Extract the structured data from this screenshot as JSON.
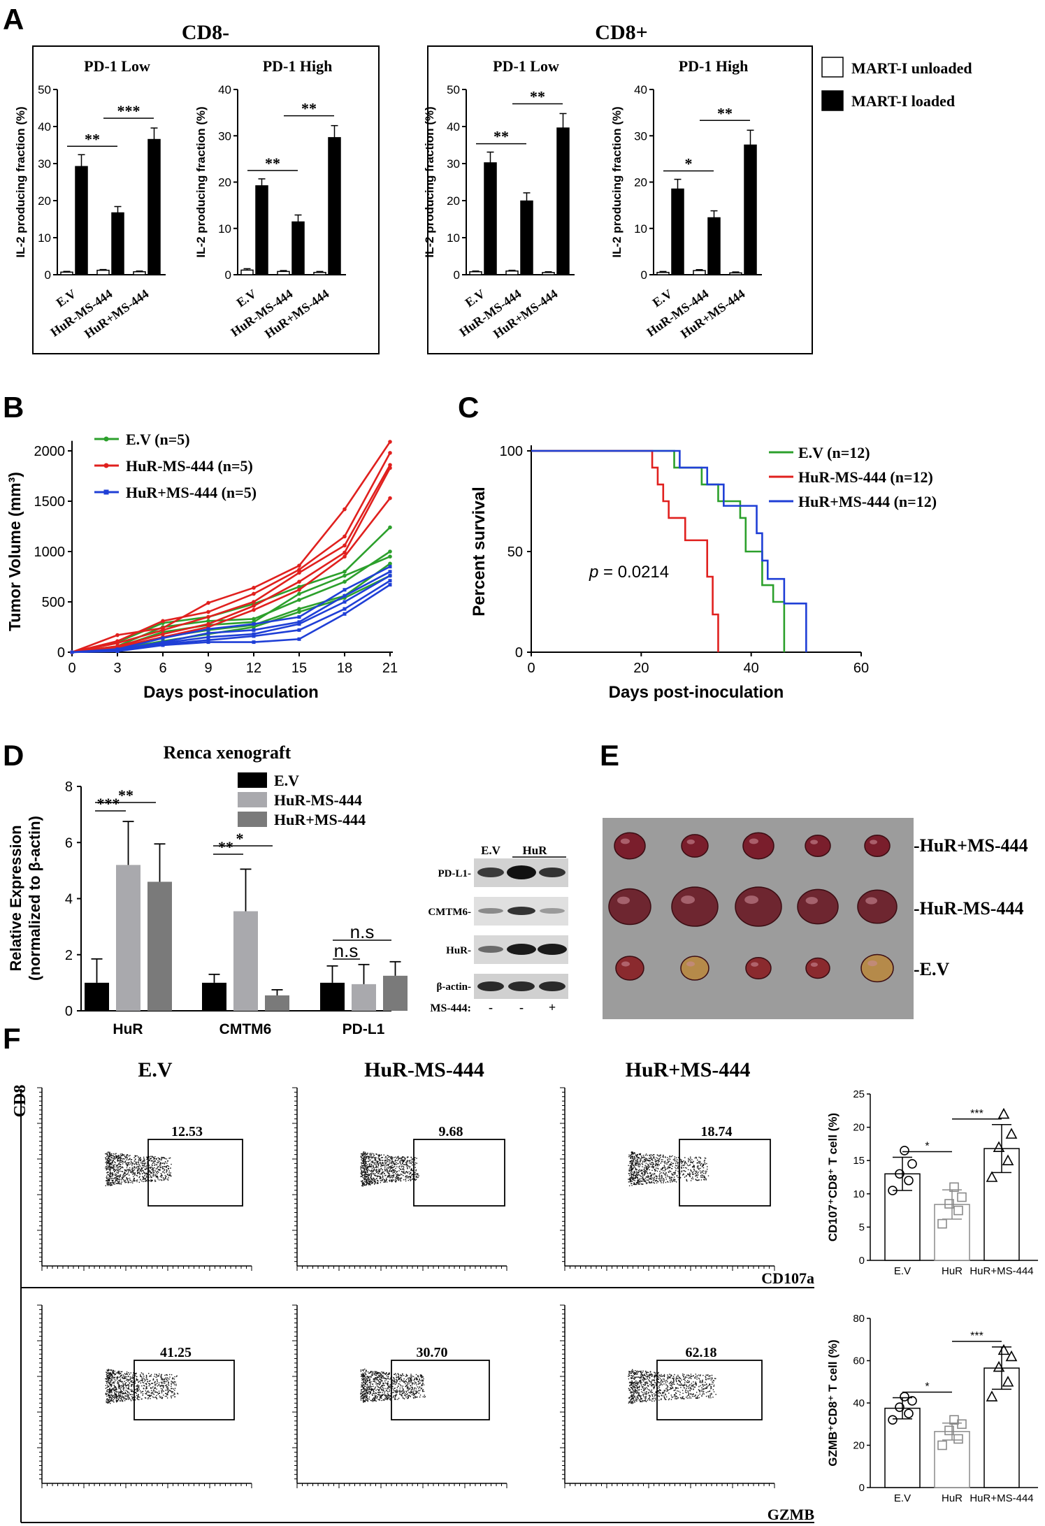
{
  "panel_letters": [
    "A",
    "B",
    "C",
    "D",
    "E",
    "F"
  ],
  "panelA": {
    "group_titles": [
      "CD8-",
      "CD8+"
    ],
    "legend": [
      {
        "label": "MART-I unloaded",
        "color": "#ffffff"
      },
      {
        "label": "MART-I loaded",
        "color": "#000000"
      }
    ]
  },
  "panelB": {
    "legend": [
      "E.V (n=5)",
      "HuR-MS-444 (n=5)",
      "HuR+MS-444 (n=5)"
    ],
    "colors": [
      "#2ca02c",
      "#e0201e",
      "#1f3fd6"
    ]
  },
  "panelC": {
    "legend": [
      "E.V (n=12)",
      "HuR-MS-444 (n=12)",
      "HuR+MS-444 (n=12)"
    ],
    "p_label": "p",
    "p_value": " = 0.0214"
  },
  "panelD": {
    "title": "Renca xenograft",
    "legend": [
      {
        "label": "E.V",
        "color": "#000000"
      },
      {
        "label": "HuR-MS-444",
        "color": "#a9a9ad"
      },
      {
        "label": "HuR+MS-444",
        "color": "#7a7a7a"
      }
    ],
    "blot": {
      "header": [
        "E.V",
        "HuR"
      ],
      "rows": [
        "PD-L1-",
        "CMTM6-",
        "HuR-",
        "β-actin-"
      ],
      "treatment_label": "MS-444:",
      "treatment_signs": [
        "-",
        "-",
        "+"
      ]
    }
  },
  "panelE": {
    "row_labels": [
      "HuR+MS-444",
      "HuR-MS-444",
      "E.V"
    ]
  },
  "panelF": {
    "column_titles": [
      "E.V",
      "HuR-MS-444",
      "HuR+MS-444"
    ],
    "y_marker": "CD8",
    "x_markers": [
      "CD107a",
      "GZMB"
    ],
    "gate_values": [
      [
        "12.53",
        "9.68",
        "18.74"
      ],
      [
        "41.25",
        "30.70",
        "62.18"
      ]
    ]
  },
  "chart_data": [
    {
      "type": "bar",
      "title": "PD-1 Low",
      "group": "CD8-",
      "ylabel": "IL-2 producing fraction (%)",
      "ylim": [
        0,
        50
      ],
      "yticks": [
        0,
        10,
        20,
        30,
        40,
        50
      ],
      "categories": [
        "E.V",
        "HuR-MS-444",
        "HuR+MS-444"
      ],
      "series": [
        {
          "name": "MART-I unloaded",
          "values": [
            0.7,
            1.2,
            0.8
          ],
          "errors": [
            0.2,
            0.2,
            0.2
          ]
        },
        {
          "name": "MART-I loaded",
          "values": [
            29.2,
            16.7,
            36.5
          ],
          "errors": [
            3.2,
            1.7,
            3.1
          ]
        }
      ],
      "significance": [
        {
          "from": 0,
          "to": 1,
          "label": "**"
        },
        {
          "from": 1,
          "to": 2,
          "label": "***"
        }
      ]
    },
    {
      "type": "bar",
      "title": "PD-1 High",
      "group": "CD8-",
      "ylabel": "IL-2 producing fraction (%)",
      "ylim": [
        0,
        40
      ],
      "yticks": [
        0,
        10,
        20,
        30,
        40
      ],
      "categories": [
        "E.V",
        "HuR-MS-444",
        "HuR+MS-444"
      ],
      "series": [
        {
          "name": "MART-I unloaded",
          "values": [
            1.0,
            0.7,
            0.5
          ],
          "errors": [
            0.3,
            0.2,
            0.2
          ]
        },
        {
          "name": "MART-I loaded",
          "values": [
            19.2,
            11.4,
            29.6
          ],
          "errors": [
            1.5,
            1.5,
            2.6
          ]
        }
      ],
      "significance": [
        {
          "from": 0,
          "to": 1,
          "label": "**"
        },
        {
          "from": 1,
          "to": 2,
          "label": "**"
        }
      ]
    },
    {
      "type": "bar",
      "title": "PD-1 Low",
      "group": "CD8+",
      "ylabel": "IL-2 producing fraction (%)",
      "ylim": [
        0,
        50
      ],
      "yticks": [
        0,
        10,
        20,
        30,
        40,
        50
      ],
      "categories": [
        "E.V",
        "HuR-MS-444",
        "HuR+MS-444"
      ],
      "series": [
        {
          "name": "MART-I unloaded",
          "values": [
            0.8,
            1.0,
            0.6
          ],
          "errors": [
            0.2,
            0.2,
            0.2
          ]
        },
        {
          "name": "MART-I loaded",
          "values": [
            30.2,
            19.9,
            39.6
          ],
          "errors": [
            2.9,
            2.2,
            3.9
          ]
        }
      ],
      "significance": [
        {
          "from": 0,
          "to": 1,
          "label": "**"
        },
        {
          "from": 1,
          "to": 2,
          "label": "**"
        }
      ]
    },
    {
      "type": "bar",
      "title": "PD-1 High",
      "group": "CD8+",
      "ylabel": "IL-2 producing fraction (%)",
      "ylim": [
        0,
        40
      ],
      "yticks": [
        0,
        10,
        20,
        30,
        40
      ],
      "categories": [
        "E.V",
        "HuR-MS-444",
        "HuR+MS-444"
      ],
      "series": [
        {
          "name": "MART-I unloaded",
          "values": [
            0.5,
            0.9,
            0.4
          ],
          "errors": [
            0.2,
            0.2,
            0.2
          ]
        },
        {
          "name": "MART-I loaded",
          "values": [
            18.5,
            12.3,
            28.0
          ],
          "errors": [
            2.1,
            1.5,
            3.2
          ]
        }
      ],
      "significance": [
        {
          "from": 0,
          "to": 1,
          "label": "*"
        },
        {
          "from": 1,
          "to": 2,
          "label": "**"
        }
      ]
    },
    {
      "type": "line",
      "xlabel": "Days post-inoculation",
      "ylabel": "Tumor Volume (mm³)",
      "xlim": [
        0,
        21
      ],
      "ylim": [
        0,
        2000
      ],
      "xticks": [
        0,
        3,
        6,
        9,
        12,
        15,
        18,
        21
      ],
      "yticks": [
        0,
        500,
        1000,
        1500,
        2000
      ],
      "x": [
        0,
        3,
        6,
        9,
        12,
        15,
        18,
        21
      ],
      "groups": [
        {
          "name": "E.V (n=5)",
          "color": "#2ca02c",
          "curves": [
            [
              0,
              100,
              290,
              350,
              480,
              650,
              800,
              1240
            ],
            [
              0,
              60,
              250,
              310,
              330,
              520,
              700,
              1000
            ],
            [
              0,
              50,
              200,
              270,
              300,
              580,
              760,
              950
            ],
            [
              0,
              40,
              150,
              220,
              270,
              430,
              560,
              880
            ],
            [
              0,
              30,
              110,
              180,
              250,
              400,
              540,
              760
            ]
          ]
        },
        {
          "name": "HuR-MS-444 (n=5)",
          "color": "#e0201e",
          "curves": [
            [
              0,
              170,
              240,
              490,
              640,
              860,
              1420,
              2090
            ],
            [
              0,
              110,
              310,
              400,
              580,
              820,
              1150,
              1980
            ],
            [
              0,
              90,
              220,
              350,
              500,
              790,
              1060,
              1860
            ],
            [
              0,
              60,
              180,
              280,
              460,
              700,
              990,
              1830
            ],
            [
              0,
              50,
              150,
              250,
              420,
              620,
              950,
              1530
            ]
          ]
        },
        {
          "name": "HuR+MS-444 (n=5)",
          "color": "#1f3fd6",
          "curves": [
            [
              0,
              30,
              140,
              230,
              280,
              350,
              620,
              850
            ],
            [
              0,
              25,
              100,
              190,
              220,
              300,
              560,
              800
            ],
            [
              0,
              20,
              90,
              150,
              180,
              280,
              500,
              760
            ],
            [
              0,
              15,
              80,
              120,
              160,
              220,
              430,
              710
            ],
            [
              0,
              10,
              70,
              100,
              100,
              130,
              380,
              670
            ]
          ]
        }
      ]
    },
    {
      "type": "line",
      "xlabel": "Days post-inoculation",
      "ylabel": "Percent survival",
      "xlim": [
        0,
        60
      ],
      "ylim": [
        0,
        100
      ],
      "xticks": [
        0,
        20,
        40,
        60
      ],
      "yticks": [
        0,
        50,
        100
      ],
      "series": [
        {
          "name": "E.V (n=12)",
          "color": "#2ca02c",
          "steps": [
            [
              0,
              100
            ],
            [
              26,
              100
            ],
            [
              26,
              91.7
            ],
            [
              31,
              91.7
            ],
            [
              31,
              83.3
            ],
            [
              34,
              83.3
            ],
            [
              34,
              75
            ],
            [
              38,
              75
            ],
            [
              38,
              66.7
            ],
            [
              39,
              66.7
            ],
            [
              39,
              50
            ],
            [
              42,
              50
            ],
            [
              42,
              33.3
            ],
            [
              44,
              33.3
            ],
            [
              44,
              25
            ],
            [
              46,
              25
            ],
            [
              46,
              0
            ]
          ]
        },
        {
          "name": "HuR-MS-444 (n=12)",
          "color": "#e0201e",
          "steps": [
            [
              0,
              100
            ],
            [
              22,
              100
            ],
            [
              22,
              91.7
            ],
            [
              23,
              91.7
            ],
            [
              23,
              83.3
            ],
            [
              24,
              83.3
            ],
            [
              24,
              75
            ],
            [
              25,
              75
            ],
            [
              25,
              66.7
            ],
            [
              28,
              66.7
            ],
            [
              28,
              55.6
            ],
            [
              32,
              55.6
            ],
            [
              32,
              37.5
            ],
            [
              33,
              37.5
            ],
            [
              33,
              18.75
            ],
            [
              34,
              18.75
            ],
            [
              34,
              0
            ]
          ]
        },
        {
          "name": "HuR+MS-444 (n=12)",
          "color": "#1f3fd6",
          "steps": [
            [
              0,
              100
            ],
            [
              27,
              100
            ],
            [
              27,
              91.7
            ],
            [
              32,
              91.7
            ],
            [
              32,
              83.3
            ],
            [
              35,
              83.3
            ],
            [
              35,
              72.7
            ],
            [
              41,
              72.7
            ],
            [
              41,
              59.1
            ],
            [
              42,
              59.1
            ],
            [
              42,
              45.5
            ],
            [
              43,
              45.5
            ],
            [
              43,
              36.4
            ],
            [
              46,
              36.4
            ],
            [
              46,
              24.2
            ],
            [
              50,
              24.2
            ],
            [
              50,
              0
            ]
          ]
        }
      ]
    },
    {
      "type": "bar",
      "title": "Renca xenograft",
      "ylabel": "Relative Expression (normalized to β-actin)",
      "ylim": [
        0,
        8
      ],
      "yticks": [
        0,
        2,
        4,
        6,
        8
      ],
      "categories": [
        "HuR",
        "CMTM6",
        "PD-L1"
      ],
      "series": [
        {
          "name": "E.V",
          "values": [
            1.0,
            1.0,
            1.0
          ],
          "errors": [
            0.85,
            0.3,
            0.6
          ]
        },
        {
          "name": "HuR-MS-444",
          "values": [
            5.2,
            3.55,
            0.95
          ],
          "errors": [
            1.55,
            1.5,
            0.7
          ]
        },
        {
          "name": "HuR+MS-444",
          "values": [
            4.6,
            0.55,
            1.25
          ],
          "errors": [
            1.35,
            0.2,
            0.5
          ]
        }
      ],
      "significance": [
        {
          "group": 0,
          "label": "***"
        },
        {
          "group": 0,
          "label": "**"
        },
        {
          "group": 1,
          "label": "**"
        },
        {
          "group": 1,
          "label": "*"
        },
        {
          "group": 2,
          "label": "n.s"
        },
        {
          "group": 2,
          "label": "n.s"
        }
      ]
    },
    {
      "type": "scatter",
      "ylabel": "CD107⁺CD8⁺ T cell (%)",
      "ylim": [
        0,
        25
      ],
      "yticks": [
        0,
        5,
        10,
        15,
        20,
        25
      ],
      "categories": [
        "E.V",
        "HuR",
        "HuR+MS-444"
      ],
      "means": [
        13.0,
        8.4,
        16.8
      ],
      "sd": [
        2.5,
        2.2,
        3.6
      ],
      "points": [
        [
          10.5,
          12.0,
          13.0,
          14.5,
          16.5
        ],
        [
          5.5,
          7.5,
          8.5,
          9.5,
          11.0
        ],
        [
          12.5,
          15.0,
          17.0,
          19.0,
          22.0
        ]
      ],
      "significance": [
        {
          "from": 0,
          "to": 1,
          "label": "*"
        },
        {
          "from": 1,
          "to": 2,
          "label": "***"
        }
      ]
    },
    {
      "type": "scatter",
      "ylabel": "GZMB⁺CD8⁺ T cell (%)",
      "ylim": [
        0,
        80
      ],
      "yticks": [
        0,
        20,
        40,
        60,
        80
      ],
      "categories": [
        "E.V",
        "HuR",
        "HuR+MS-444"
      ],
      "means": [
        37.5,
        26.5,
        56.5
      ],
      "sd": [
        5.0,
        4.0,
        10.0
      ],
      "points": [
        [
          32,
          35,
          38,
          41,
          43
        ],
        [
          20,
          23,
          27,
          30,
          32
        ],
        [
          43,
          50,
          57,
          62,
          65
        ]
      ],
      "significance": [
        {
          "from": 0,
          "to": 1,
          "label": "*"
        },
        {
          "from": 1,
          "to": 2,
          "label": "***"
        }
      ]
    }
  ]
}
